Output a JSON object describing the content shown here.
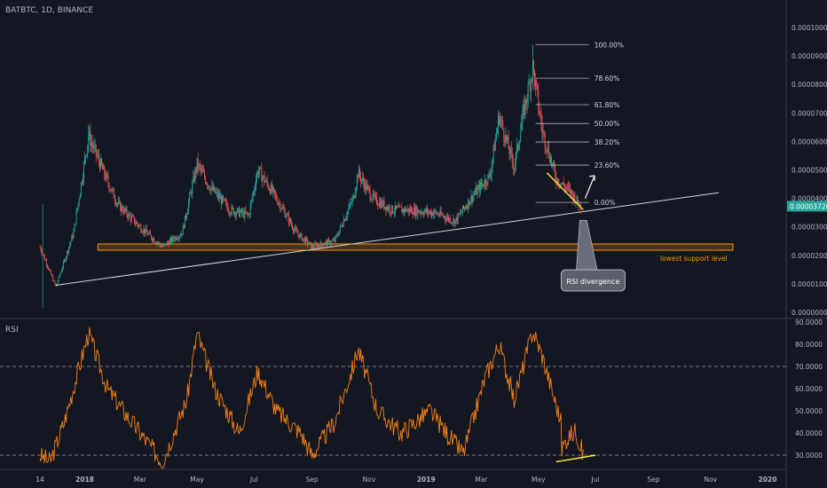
{
  "header": {
    "symbol": "BATBTC, 1D, BINANCE"
  },
  "colors": {
    "background": "#131722",
    "grid": "#2a2e39",
    "text": "#b2b5be",
    "up": "#26a69a",
    "down": "#ef5350",
    "rsi": "#f57f17",
    "support": "#ff9800",
    "annotation": "#ffeb3b",
    "price_tag": "#26a69a"
  },
  "chart_data": [
    {
      "type": "candlestick",
      "title": "BATBTC, 1D, BINANCE",
      "ylim": [
        0.0,
        0.000103
      ],
      "y_ticks": [
        "0.00010000",
        "0.00009000",
        "0.00008000",
        "0.00007000",
        "0.00006000",
        "0.00005000",
        "0.00004000",
        "0.00003000",
        "0.00002000",
        "0.00001000",
        "0.00000000"
      ],
      "y_tick_values": [
        0.0001,
        9e-05,
        8e-05,
        7e-05,
        6e-05,
        5e-05,
        4e-05,
        3e-05,
        2e-05,
        1e-05,
        0.0
      ],
      "x_ticks": [
        "14",
        "2018",
        "Mar",
        "May",
        "Jul",
        "Sep",
        "Nov",
        "2019",
        "Mar",
        "May",
        "Jul",
        "Sep",
        "Nov",
        "2020"
      ],
      "x_tick_dates": [
        "2017-11-14",
        "2018-01-01",
        "2018-03-01",
        "2018-05-01",
        "2018-07-01",
        "2018-09-01",
        "2018-11-01",
        "2019-01-01",
        "2019-03-01",
        "2019-05-01",
        "2019-07-01",
        "2019-09-01",
        "2019-11-01",
        "2020-01-01"
      ],
      "last_price": "0.00003726",
      "price_path": [
        [
          "2017-11-14",
          2.3e-05
        ],
        [
          "2017-12-01",
          9e-06
        ],
        [
          "2017-12-20",
          2.8e-05
        ],
        [
          "2018-01-05",
          6.2e-05
        ],
        [
          "2018-01-20",
          5e-05
        ],
        [
          "2018-02-05",
          3.8e-05
        ],
        [
          "2018-03-01",
          3e-05
        ],
        [
          "2018-03-25",
          2.3e-05
        ],
        [
          "2018-04-15",
          2.8e-05
        ],
        [
          "2018-05-01",
          5.2e-05
        ],
        [
          "2018-05-15",
          4.4e-05
        ],
        [
          "2018-06-05",
          3.6e-05
        ],
        [
          "2018-06-25",
          3.4e-05
        ],
        [
          "2018-07-05",
          5e-05
        ],
        [
          "2018-07-25",
          4e-05
        ],
        [
          "2018-08-15",
          2.8e-05
        ],
        [
          "2018-09-01",
          2.3e-05
        ],
        [
          "2018-09-25",
          2.5e-05
        ],
        [
          "2018-10-15",
          4e-05
        ],
        [
          "2018-10-20",
          4.9e-05
        ],
        [
          "2018-11-05",
          4e-05
        ],
        [
          "2018-11-25",
          3.6e-05
        ],
        [
          "2018-12-10",
          3.6e-05
        ],
        [
          "2019-01-10",
          3.5e-05
        ],
        [
          "2019-02-01",
          3.2e-05
        ],
        [
          "2019-02-20",
          4.1e-05
        ],
        [
          "2019-03-10",
          4.8e-05
        ],
        [
          "2019-03-20",
          6.9e-05
        ],
        [
          "2019-04-05",
          5.1e-05
        ],
        [
          "2019-04-15",
          7e-05
        ],
        [
          "2019-04-25",
          8.6e-05
        ],
        [
          "2019-05-05",
          6.4e-05
        ],
        [
          "2019-05-20",
          4.7e-05
        ],
        [
          "2019-06-05",
          4.2e-05
        ],
        [
          "2019-06-15",
          3.72e-05
        ]
      ],
      "highs": [
        [
          "2018-01-05",
          6.6e-05
        ],
        [
          "2019-04-25",
          9.4e-05
        ]
      ],
      "fibonacci": {
        "levels": [
          {
            "label": "100.00%",
            "value": 9.4e-05
          },
          {
            "label": "78.60%",
            "value": 8.22e-05
          },
          {
            "label": "61.80%",
            "value": 7.29e-05
          },
          {
            "label": "50.00%",
            "value": 6.63e-05
          },
          {
            "label": "38.20%",
            "value": 5.98e-05
          },
          {
            "label": "23.60%",
            "value": 5.17e-05
          },
          {
            "label": "0.00%",
            "value": 3.86e-05
          }
        ],
        "from": "2019-04-28",
        "to": "2019-06-24"
      },
      "trendline": {
        "start": [
          "2017-12-01",
          9.5e-06
        ],
        "end": [
          "2019-11-10",
          4.2e-05
        ]
      },
      "support_zone": {
        "from": "2018-01-15",
        "to": "2019-11-25",
        "low": 2.18e-05,
        "high": 2.4e-05,
        "label": "lowest support level"
      },
      "divergence_line": {
        "start": [
          "2019-05-10",
          4.9e-05
        ],
        "end": [
          "2019-06-18",
          3.6e-05
        ]
      },
      "callout": {
        "label": "RSI divergence",
        "anchor": [
          "2019-06-18",
          3.6e-05
        ]
      },
      "arrow": {
        "start": [
          "2019-06-20",
          4e-05
        ],
        "end": [
          "2019-06-30",
          4.8e-05
        ]
      }
    },
    {
      "type": "line",
      "title": "RSI",
      "ylim": [
        22,
        92
      ],
      "y_ticks": [
        "90.0000",
        "80.0000",
        "70.0000",
        "60.0000",
        "50.0000",
        "40.0000",
        "30.0000"
      ],
      "y_tick_values": [
        90,
        80,
        70,
        60,
        50,
        40,
        30
      ],
      "bands": [
        70,
        30
      ],
      "rsi_path": [
        [
          "2017-11-14",
          30
        ],
        [
          "2017-11-25",
          27
        ],
        [
          "2017-12-10",
          45
        ],
        [
          "2018-01-05",
          85
        ],
        [
          "2018-01-25",
          60
        ],
        [
          "2018-02-20",
          45
        ],
        [
          "2018-03-25",
          27
        ],
        [
          "2018-04-20",
          55
        ],
        [
          "2018-05-01",
          85
        ],
        [
          "2018-05-20",
          60
        ],
        [
          "2018-06-15",
          40
        ],
        [
          "2018-07-05",
          68
        ],
        [
          "2018-07-25",
          50
        ],
        [
          "2018-08-20",
          40
        ],
        [
          "2018-09-01",
          30
        ],
        [
          "2018-09-25",
          45
        ],
        [
          "2018-10-15",
          70
        ],
        [
          "2018-10-20",
          78
        ],
        [
          "2018-11-10",
          50
        ],
        [
          "2018-12-05",
          40
        ],
        [
          "2019-01-05",
          50
        ],
        [
          "2019-02-01",
          35
        ],
        [
          "2019-02-10",
          31
        ],
        [
          "2019-03-05",
          65
        ],
        [
          "2019-03-20",
          80
        ],
        [
          "2019-04-05",
          55
        ],
        [
          "2019-04-25",
          86
        ],
        [
          "2019-05-05",
          75
        ],
        [
          "2019-05-25",
          45
        ],
        [
          "2019-05-20",
          28
        ],
        [
          "2019-06-01",
          38
        ],
        [
          "2019-06-10",
          41
        ],
        [
          "2019-06-18",
          30
        ]
      ],
      "divergence_line": {
        "start": [
          "2019-05-20",
          27
        ],
        "end": [
          "2019-07-01",
          30
        ]
      }
    }
  ]
}
